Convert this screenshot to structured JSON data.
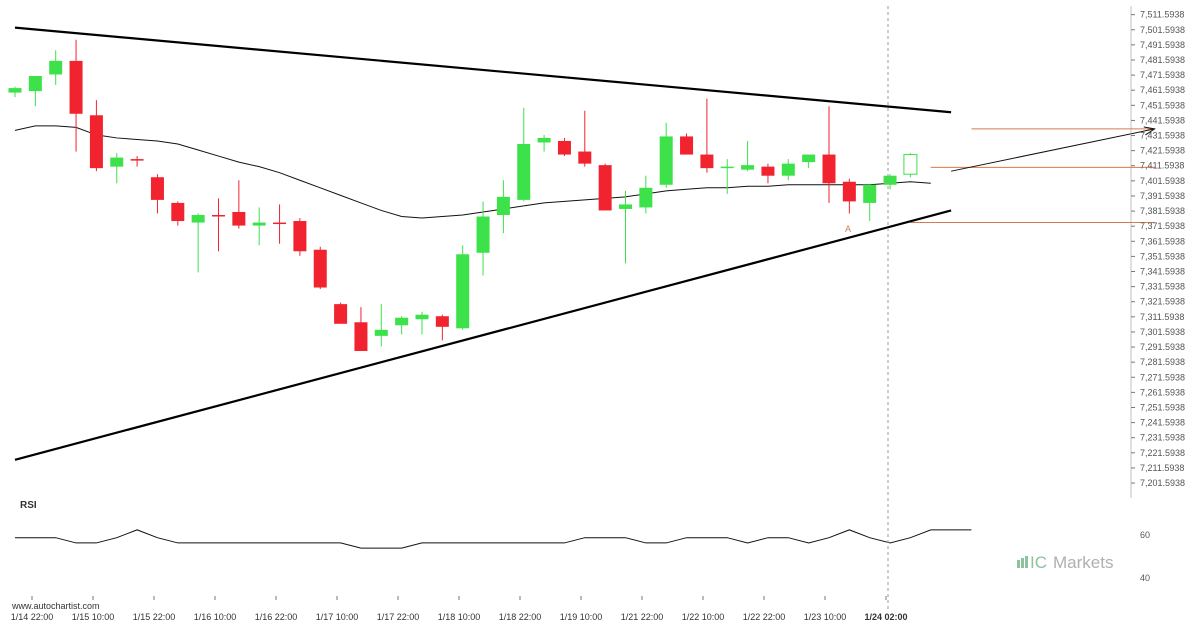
{
  "watermark": {
    "left": "www.autochartist.com",
    "brand_prefix": "IC",
    "brand_suffix": "Markets"
  },
  "rsi": {
    "label": "RSI",
    "ticks": [
      "60",
      "40"
    ]
  },
  "annotation": {
    "point_label": "A"
  },
  "colors": {
    "up": "#3de24a",
    "down": "#f0232e",
    "wick": "#2c2c2c",
    "line": "#000000",
    "level": "#d97a4a",
    "label": "#555555",
    "grid_dash": "#9a9a9a"
  },
  "chart_data": {
    "type": "candlestick",
    "price_ticks": [
      "7,511.5938",
      "7,501.5938",
      "7,491.5938",
      "7,481.5938",
      "7,471.5938",
      "7,461.5938",
      "7,451.5938",
      "7,441.5938",
      "7,431.5938",
      "7,421.5938",
      "7,411.5938",
      "7,401.5938",
      "7,391.5938",
      "7,381.5938",
      "7,371.5938",
      "7,361.5938",
      "7,351.5938",
      "7,341.5938",
      "7,331.5938",
      "7,321.5938",
      "7,311.5938",
      "7,301.5938",
      "7,291.5938",
      "7,281.5938",
      "7,271.5938",
      "7,261.5938",
      "7,251.5938",
      "7,241.5938",
      "7,231.5938",
      "7,221.5938",
      "7,211.5938",
      "7,201.5938"
    ],
    "ylim": [
      7195.0,
      7516.0
    ],
    "x_labels": [
      "1/14 22:00",
      "1/15 10:00",
      "1/15 22:00",
      "1/16 10:00",
      "1/16 22:00",
      "1/17 10:00",
      "1/17 22:00",
      "1/18 10:00",
      "1/18 22:00",
      "1/19 10:00",
      "1/21 22:00",
      "1/22 10:00",
      "1/22 22:00",
      "1/23 10:00",
      "1/24 02:00"
    ],
    "current_x_label": "1/24 02:00",
    "candles": [
      {
        "o": 7460,
        "h": 7464,
        "l": 7457,
        "c": 7463
      },
      {
        "o": 7461,
        "h": 7470,
        "l": 7451,
        "c": 7471
      },
      {
        "o": 7472,
        "h": 7488,
        "l": 7465,
        "c": 7481
      },
      {
        "o": 7481,
        "h": 7495,
        "l": 7421,
        "c": 7446
      },
      {
        "o": 7445,
        "h": 7455,
        "l": 7408,
        "c": 7410
      },
      {
        "o": 7411,
        "h": 7420,
        "l": 7400,
        "c": 7417
      },
      {
        "o": 7416,
        "h": 7418,
        "l": 7411,
        "c": 7415
      },
      {
        "o": 7404,
        "h": 7406,
        "l": 7380,
        "c": 7389
      },
      {
        "o": 7387,
        "h": 7388,
        "l": 7372,
        "c": 7375
      },
      {
        "o": 7374,
        "h": 7380,
        "l": 7341,
        "c": 7379
      },
      {
        "o": 7379,
        "h": 7390,
        "l": 7355,
        "c": 7378
      },
      {
        "o": 7381,
        "h": 7402,
        "l": 7370,
        "c": 7372
      },
      {
        "o": 7372,
        "h": 7384,
        "l": 7359,
        "c": 7374
      },
      {
        "o": 7374,
        "h": 7386,
        "l": 7360,
        "c": 7373
      },
      {
        "o": 7375,
        "h": 7377,
        "l": 7352,
        "c": 7355
      },
      {
        "o": 7356,
        "h": 7358,
        "l": 7330,
        "c": 7331
      },
      {
        "o": 7320,
        "h": 7321,
        "l": 7308,
        "c": 7307
      },
      {
        "o": 7308,
        "h": 7318,
        "l": 7290,
        "c": 7289
      },
      {
        "o": 7299,
        "h": 7320,
        "l": 7292,
        "c": 7303
      },
      {
        "o": 7306,
        "h": 7312,
        "l": 7300,
        "c": 7311
      },
      {
        "o": 7310,
        "h": 7315,
        "l": 7300,
        "c": 7313
      },
      {
        "o": 7312,
        "h": 7313,
        "l": 7296,
        "c": 7305
      },
      {
        "o": 7304,
        "h": 7359,
        "l": 7303,
        "c": 7353
      },
      {
        "o": 7354,
        "h": 7388,
        "l": 7339,
        "c": 7378
      },
      {
        "o": 7379,
        "h": 7402,
        "l": 7367,
        "c": 7391
      },
      {
        "o": 7389,
        "h": 7450,
        "l": 7388,
        "c": 7426
      },
      {
        "o": 7427,
        "h": 7432,
        "l": 7421,
        "c": 7430
      },
      {
        "o": 7428,
        "h": 7430,
        "l": 7418,
        "c": 7419
      },
      {
        "o": 7421,
        "h": 7448,
        "l": 7411,
        "c": 7413
      },
      {
        "o": 7412,
        "h": 7413,
        "l": 7382,
        "c": 7382
      },
      {
        "o": 7383,
        "h": 7395,
        "l": 7347,
        "c": 7386
      },
      {
        "o": 7384,
        "h": 7405,
        "l": 7380,
        "c": 7397
      },
      {
        "o": 7399,
        "h": 7440,
        "l": 7397,
        "c": 7431
      },
      {
        "o": 7431,
        "h": 7433,
        "l": 7420,
        "c": 7419
      },
      {
        "o": 7419,
        "h": 7456,
        "l": 7407,
        "c": 7410
      },
      {
        "o": 7410,
        "h": 7416,
        "l": 7393,
        "c": 7411
      },
      {
        "o": 7409,
        "h": 7428,
        "l": 7408,
        "c": 7412
      },
      {
        "o": 7411,
        "h": 7413,
        "l": 7400,
        "c": 7405
      },
      {
        "o": 7405,
        "h": 7416,
        "l": 7402,
        "c": 7413
      },
      {
        "o": 7414,
        "h": 7419,
        "l": 7410,
        "c": 7419
      },
      {
        "o": 7419,
        "h": 7451,
        "l": 7387,
        "c": 7400
      },
      {
        "o": 7401,
        "h": 7403,
        "l": 7380,
        "c": 7388
      },
      {
        "o": 7387,
        "h": 7399,
        "l": 7375,
        "c": 7399
      },
      {
        "o": 7399,
        "h": 7406,
        "l": 7396,
        "c": 7405
      }
    ],
    "pending_candle": {
      "o": 7406,
      "h": 7420,
      "l": 7404,
      "c": 7419
    },
    "moving_average": [
      7435,
      7438,
      7438,
      7437,
      7432,
      7430,
      7429,
      7428,
      7426,
      7422,
      7418,
      7414,
      7411,
      7407,
      7402,
      7397,
      7392,
      7387,
      7382,
      7378,
      7377,
      7378,
      7379,
      7381,
      7383,
      7385,
      7387,
      7388,
      7389,
      7390,
      7391,
      7393,
      7395,
      7396,
      7397,
      7397,
      7398,
      7398,
      7399,
      7399,
      7399,
      7399,
      7399,
      7400,
      7401,
      7400
    ],
    "trendlines": [
      {
        "name": "upper",
        "points": [
          [
            0,
            7503
          ],
          [
            46,
            7447
          ]
        ]
      },
      {
        "name": "lower",
        "points": [
          [
            0,
            7217
          ],
          [
            46,
            7382
          ]
        ]
      }
    ],
    "projection_arrow": {
      "from": [
        46,
        7408
      ],
      "to": [
        56,
        7436
      ]
    },
    "levels": [
      {
        "name": "target",
        "value": 7436,
        "from": 47,
        "to": 56
      },
      {
        "name": "breakout",
        "value": 7410.5,
        "from": 45,
        "to": 56
      },
      {
        "name": "point_A",
        "value": 7374,
        "from": 44,
        "to": 56
      }
    ],
    "point_A": {
      "index": 44,
      "value": 7374
    },
    "rsi_series": [
      57,
      57,
      57,
      55,
      55,
      57,
      60,
      57,
      55,
      55,
      55,
      55,
      55,
      55,
      55,
      55,
      55,
      53,
      53,
      53,
      55,
      55,
      55,
      55,
      55,
      55,
      55,
      55,
      57,
      57,
      57,
      55,
      55,
      57,
      57,
      57,
      55,
      57,
      57,
      55,
      57,
      60,
      57,
      55,
      57,
      60,
      60,
      60
    ],
    "rsi_range": [
      37,
      63
    ]
  }
}
